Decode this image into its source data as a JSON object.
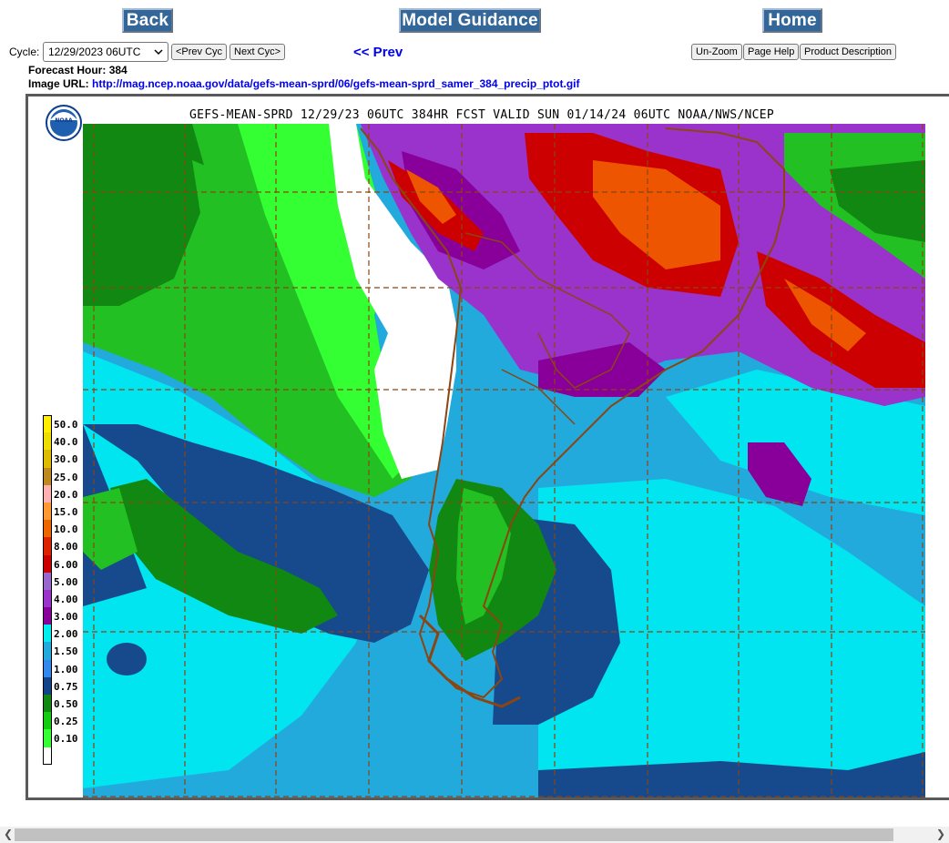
{
  "nav": {
    "back_label": "Back",
    "model_guidance_label": "Model Guidance",
    "home_label": "Home"
  },
  "cycle": {
    "label": "Cycle:",
    "selected": "12/29/2023 06UTC",
    "prev_button": "<Prev Cyc",
    "next_button": "Next Cyc>"
  },
  "prev_link": "<< Prev",
  "tools": {
    "unzoom": "Un-Zoom",
    "page_help": "Page Help",
    "product_description": "Product Description"
  },
  "info": {
    "forecast_hour_label": "Forecast Hour:",
    "forecast_hour": "384",
    "image_url_label": "Image URL:",
    "image_url": "http://mag.ncep.noaa.gov/data/gefs-mean-sprd/06/gefs-mean-sprd_samer_384_precip_ptot.gif"
  },
  "map": {
    "title": "GEFS-MEAN-SPRD 12/29/23 06UTC 384HR FCST VALID SUN 01/14/24 06UTC NOAA/NWS/NCEP",
    "logo_text": "NOAA",
    "legend": [
      {
        "label": "50.0",
        "color": "#ffee00"
      },
      {
        "label": "40.0",
        "color": "#eedd00"
      },
      {
        "label": "30.0",
        "color": "#ddbb00"
      },
      {
        "label": "25.0",
        "color": "#c08820"
      },
      {
        "label": "20.0",
        "color": "#ffb0b0"
      },
      {
        "label": "15.0",
        "color": "#ff9933"
      },
      {
        "label": "10.0",
        "color": "#ee6600"
      },
      {
        "label": "8.00",
        "color": "#dd2200"
      },
      {
        "label": "6.00",
        "color": "#cc0000"
      },
      {
        "label": "5.00",
        "color": "#9966cc"
      },
      {
        "label": "4.00",
        "color": "#9933cc"
      },
      {
        "label": "3.00",
        "color": "#880099"
      },
      {
        "label": "2.00",
        "color": "#00eeee"
      },
      {
        "label": "1.50",
        "color": "#22aadd"
      },
      {
        "label": "1.00",
        "color": "#3388ee"
      },
      {
        "label": "0.75",
        "color": "#114488"
      },
      {
        "label": "0.50",
        "color": "#118811"
      },
      {
        "label": "0.25",
        "color": "#11cc11"
      },
      {
        "label": "0.10",
        "color": "#33ff33"
      },
      {
        "label": "",
        "color": "#ffffff"
      }
    ]
  }
}
